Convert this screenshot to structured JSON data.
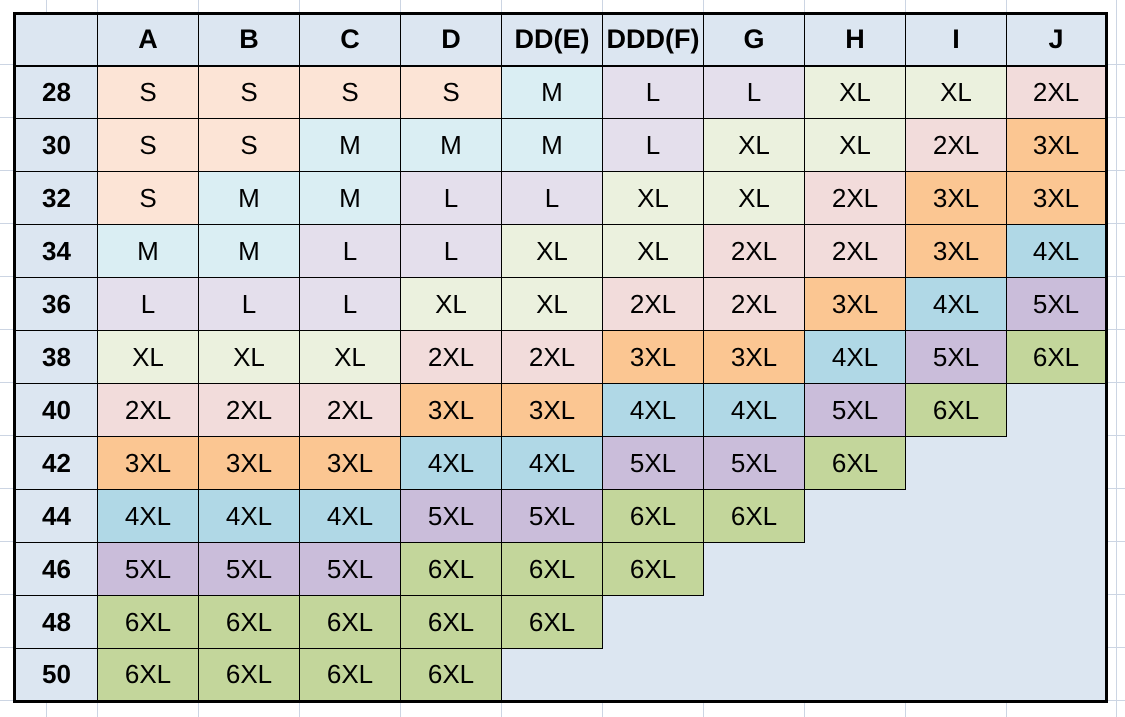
{
  "table": {
    "corner_label": "",
    "columns": [
      "A",
      "B",
      "C",
      "D",
      "DD(E)",
      "DDD(F)",
      "G",
      "H",
      "I",
      "J"
    ],
    "rows": [
      {
        "band": "28",
        "cells": [
          "S",
          "S",
          "S",
          "S",
          "M",
          "L",
          "L",
          "XL",
          "XL",
          "2XL"
        ]
      },
      {
        "band": "30",
        "cells": [
          "S",
          "S",
          "M",
          "M",
          "M",
          "L",
          "XL",
          "XL",
          "2XL",
          "3XL"
        ]
      },
      {
        "band": "32",
        "cells": [
          "S",
          "M",
          "M",
          "L",
          "L",
          "XL",
          "XL",
          "2XL",
          "3XL",
          "3XL"
        ]
      },
      {
        "band": "34",
        "cells": [
          "M",
          "M",
          "L",
          "L",
          "XL",
          "XL",
          "2XL",
          "2XL",
          "3XL",
          "4XL"
        ]
      },
      {
        "band": "36",
        "cells": [
          "L",
          "L",
          "L",
          "XL",
          "XL",
          "2XL",
          "2XL",
          "3XL",
          "4XL",
          "5XL"
        ]
      },
      {
        "band": "38",
        "cells": [
          "XL",
          "XL",
          "XL",
          "2XL",
          "2XL",
          "3XL",
          "3XL",
          "4XL",
          "5XL",
          "6XL"
        ]
      },
      {
        "band": "40",
        "cells": [
          "2XL",
          "2XL",
          "2XL",
          "3XL",
          "3XL",
          "4XL",
          "4XL",
          "5XL",
          "6XL",
          ""
        ]
      },
      {
        "band": "42",
        "cells": [
          "3XL",
          "3XL",
          "3XL",
          "4XL",
          "4XL",
          "5XL",
          "5XL",
          "6XL",
          "",
          ""
        ]
      },
      {
        "band": "44",
        "cells": [
          "4XL",
          "4XL",
          "4XL",
          "5XL",
          "5XL",
          "6XL",
          "6XL",
          "",
          "",
          ""
        ]
      },
      {
        "band": "46",
        "cells": [
          "5XL",
          "5XL",
          "5XL",
          "6XL",
          "6XL",
          "6XL",
          "",
          "",
          "",
          ""
        ]
      },
      {
        "band": "48",
        "cells": [
          "6XL",
          "6XL",
          "6XL",
          "6XL",
          "6XL",
          "",
          "",
          "",
          "",
          ""
        ]
      },
      {
        "band": "50",
        "cells": [
          "6XL",
          "6XL",
          "6XL",
          "6XL",
          "",
          "",
          "",
          "",
          "",
          ""
        ]
      }
    ]
  },
  "colors": {
    "header_fill": "#DCE6F1",
    "row_header_fill": "#DCE6F1",
    "empty_fill": "#DCE6F1",
    "gridline": "#CCD5E3",
    "border": "#000000",
    "size_fills": {
      "S": "#FCE4D6",
      "M": "#DAEEF3",
      "L": "#E4DFEC",
      "XL": "#EBF1DE",
      "2XL": "#F2DCDB",
      "3XL": "#FBC692",
      "4XL": "#B0D8E6",
      "5XL": "#CABDDA",
      "6XL": "#C3D69B"
    }
  }
}
